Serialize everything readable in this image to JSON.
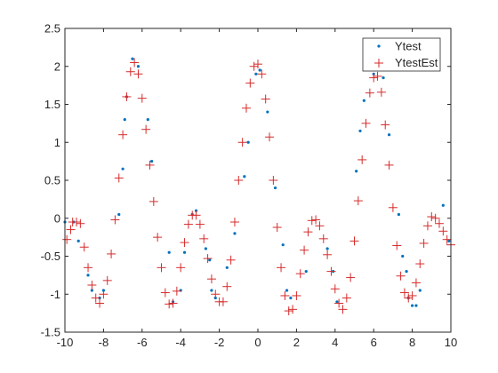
{
  "chart_data": {
    "type": "scatter",
    "title": "",
    "xlabel": "",
    "ylabel": "",
    "xlim": [
      -10,
      10
    ],
    "ylim": [
      -1.5,
      2.5
    ],
    "xticks": [
      -10,
      -8,
      -6,
      -4,
      -2,
      0,
      2,
      4,
      6,
      8,
      10
    ],
    "yticks": [
      -1.5,
      -1,
      -0.5,
      0,
      0.5,
      1,
      1.5,
      2,
      2.5
    ],
    "xtick_labels": [
      "-10",
      "-8",
      "-6",
      "-4",
      "-2",
      "0",
      "2",
      "4",
      "6",
      "8",
      "10"
    ],
    "ytick_labels": [
      "-1.5",
      "-1",
      "-0.5",
      "0",
      "0.5",
      "1",
      "1.5",
      "2",
      "2.5"
    ],
    "grid": false,
    "legend_position": "top-right",
    "series": [
      {
        "name": "Ytest",
        "marker": "dot",
        "color": "#0072BD",
        "x": [
          -10.0,
          -9.55,
          -9.3,
          -8.8,
          -8.6,
          -8.2,
          -8.0,
          -7.2,
          -7.0,
          -6.9,
          -6.8,
          -6.5,
          -6.2,
          -5.7,
          -5.5,
          -4.6,
          -4.4,
          -4.0,
          -3.8,
          -3.4,
          -3.2,
          -2.7,
          -2.5,
          -2.4,
          -2.2,
          -1.6,
          -1.2,
          -0.7,
          -0.5,
          -0.1,
          0.1,
          0.5,
          0.9,
          1.3,
          1.5,
          1.7,
          2.5,
          3.6,
          3.9,
          4.1,
          5.1,
          5.3,
          5.5,
          6.0,
          6.5,
          6.8,
          7.3,
          7.5,
          7.7,
          7.8,
          8.0,
          8.2,
          8.4,
          9.6,
          9.9
        ],
        "y": [
          -0.05,
          -0.05,
          -0.3,
          -0.75,
          -0.95,
          -1.05,
          -0.95,
          0.05,
          0.65,
          1.3,
          1.6,
          2.1,
          2.0,
          1.3,
          0.75,
          -0.45,
          -1.1,
          -0.95,
          -0.45,
          0.05,
          0.1,
          -0.4,
          -0.55,
          -0.95,
          -1.05,
          -0.65,
          -0.2,
          0.55,
          1.0,
          1.9,
          1.95,
          1.4,
          0.4,
          -0.35,
          -0.95,
          -1.05,
          -0.7,
          -0.4,
          -0.7,
          -1.1,
          0.62,
          1.15,
          1.55,
          1.9,
          1.85,
          1.1,
          0.05,
          -0.5,
          -0.7,
          -1.05,
          -1.15,
          -1.15,
          -0.95,
          0.17,
          -0.3
        ]
      },
      {
        "name": "YtestEst",
        "marker": "plus",
        "color": "#D62B2B",
        "x": [
          -9.9,
          -9.7,
          -9.6,
          -9.4,
          -9.2,
          -9.0,
          -8.8,
          -8.6,
          -8.4,
          -8.2,
          -8.0,
          -7.8,
          -7.6,
          -7.4,
          -7.2,
          -7.0,
          -6.8,
          -6.6,
          -6.4,
          -6.2,
          -6.0,
          -5.8,
          -5.6,
          -5.4,
          -5.2,
          -5.0,
          -4.8,
          -4.6,
          -4.4,
          -4.2,
          -4.0,
          -3.8,
          -3.6,
          -3.4,
          -3.2,
          -3.0,
          -2.8,
          -2.6,
          -2.4,
          -2.2,
          -2.0,
          -1.8,
          -1.6,
          -1.4,
          -1.2,
          -1.0,
          -0.8,
          -0.6,
          -0.4,
          -0.2,
          0.0,
          0.2,
          0.4,
          0.6,
          0.8,
          1.0,
          1.2,
          1.4,
          1.6,
          1.8,
          2.0,
          2.2,
          2.4,
          2.6,
          2.8,
          3.0,
          3.2,
          3.4,
          3.6,
          3.8,
          4.0,
          4.2,
          4.4,
          4.6,
          4.8,
          5.0,
          5.2,
          5.4,
          5.6,
          5.8,
          6.0,
          6.2,
          6.4,
          6.6,
          6.8,
          7.0,
          7.2,
          7.4,
          7.6,
          7.8,
          8.0,
          8.2,
          8.4,
          8.6,
          8.8,
          9.0,
          9.2,
          9.4,
          9.6,
          9.8,
          10.0
        ],
        "y": [
          -0.28,
          -0.15,
          -0.05,
          -0.05,
          -0.07,
          -0.38,
          -0.65,
          -0.88,
          -1.05,
          -1.12,
          -1.0,
          -0.82,
          -0.47,
          -0.02,
          0.53,
          1.1,
          1.6,
          1.93,
          2.05,
          1.9,
          1.58,
          1.17,
          0.7,
          0.22,
          -0.25,
          -0.65,
          -0.98,
          -1.13,
          -1.12,
          -0.96,
          -0.65,
          -0.32,
          -0.08,
          0.04,
          0.04,
          -0.08,
          -0.27,
          -0.53,
          -0.8,
          -1.0,
          -1.1,
          -1.1,
          -0.9,
          -0.55,
          -0.05,
          0.5,
          1.0,
          1.45,
          1.78,
          2.0,
          2.03,
          1.9,
          1.57,
          1.07,
          0.5,
          -0.12,
          -0.65,
          -1.02,
          -1.22,
          -1.2,
          -1.02,
          -0.73,
          -0.42,
          -0.18,
          -0.03,
          -0.02,
          -0.1,
          -0.27,
          -0.48,
          -0.7,
          -0.93,
          -1.12,
          -1.2,
          -1.05,
          -0.78,
          -0.3,
          0.23,
          0.77,
          1.25,
          1.65,
          1.85,
          1.87,
          1.66,
          1.23,
          0.7,
          0.14,
          -0.36,
          -0.76,
          -0.98,
          -1.05,
          -1.02,
          -0.85,
          -0.6,
          -0.33,
          -0.1,
          0.02,
          0.0,
          -0.07,
          -0.17,
          -0.28,
          -0.35
        ]
      }
    ]
  }
}
